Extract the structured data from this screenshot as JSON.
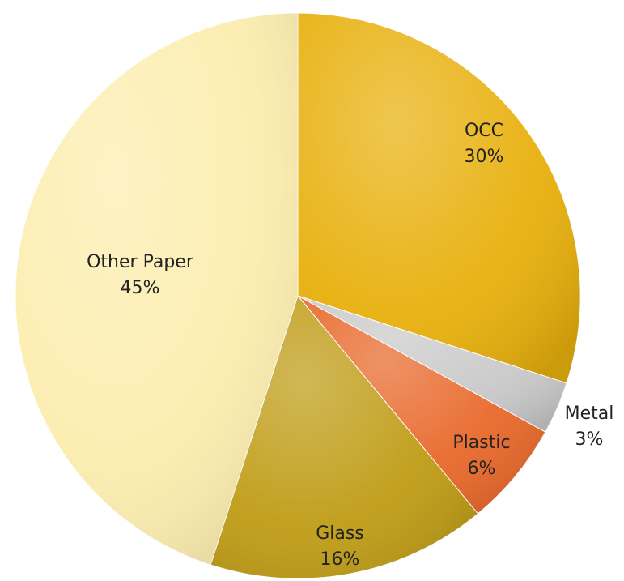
{
  "chart_data": {
    "type": "pie",
    "title": "",
    "slices": [
      {
        "label": "OCC",
        "value": 30,
        "value_label": "30%",
        "color": "#E8B00C"
      },
      {
        "label": "Metal",
        "value": 3,
        "value_label": "3%",
        "color": "#C9C9C9"
      },
      {
        "label": "Plastic",
        "value": 6,
        "value_label": "6%",
        "color": "#E8682A"
      },
      {
        "label": "Glass",
        "value": 16,
        "value_label": "16%",
        "color": "#BF9C15"
      },
      {
        "label": "Other Paper",
        "value": 45,
        "value_label": "45%",
        "color": "#FCEDAE"
      }
    ],
    "start_angle_deg": 0,
    "direction": "clockwise",
    "legend": "none",
    "label_position": "inside"
  }
}
